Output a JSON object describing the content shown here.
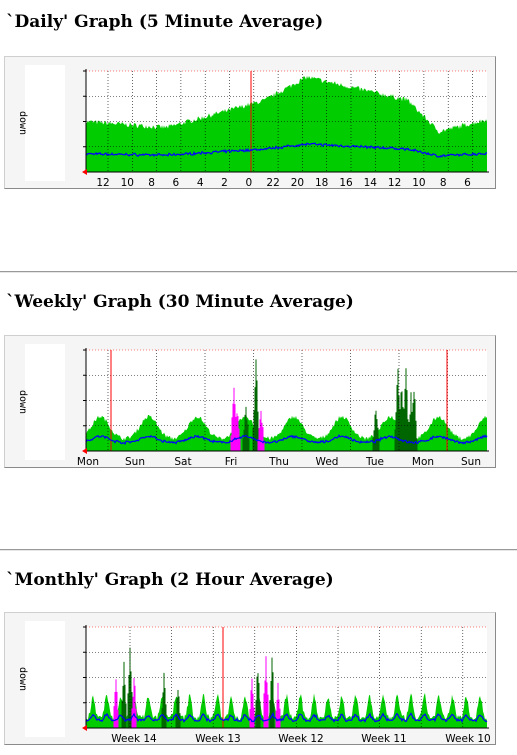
{
  "graphs": [
    {
      "id": "daily",
      "title": "`Daily' Graph (5 Minute Average)",
      "ylabel": "down",
      "xticks": [
        "12",
        "10",
        "8",
        "6",
        "4",
        "2",
        "0",
        "22",
        "20",
        "18",
        "16",
        "14",
        "12",
        "10",
        "8",
        "6"
      ],
      "colors": {
        "area": "#00cc00",
        "line": "#0000ff",
        "peak": "#006600",
        "peak2": "#ff00ff",
        "marker": "#ff0000"
      }
    },
    {
      "id": "weekly",
      "title": "`Weekly' Graph (30 Minute Average)",
      "ylabel": "down",
      "xticks": [
        "Mon",
        "Sun",
        "Sat",
        "Fri",
        "Thu",
        "Wed",
        "Tue",
        "Mon",
        "Sun"
      ],
      "colors": {
        "area": "#00cc00",
        "line": "#0000ff",
        "peak": "#006600",
        "peak2": "#ff00ff",
        "marker": "#ff0000"
      }
    },
    {
      "id": "monthly",
      "title": "`Monthly' Graph (2 Hour Average)",
      "ylabel": "down",
      "xticks": [
        "Week 14",
        "Week 13",
        "Week 12",
        "Week 11",
        "Week 10"
      ],
      "colors": {
        "area": "#00cc00",
        "line": "#0000ff",
        "peak": "#006600",
        "peak2": "#ff00ff",
        "marker": "#ff0000"
      }
    }
  ]
}
